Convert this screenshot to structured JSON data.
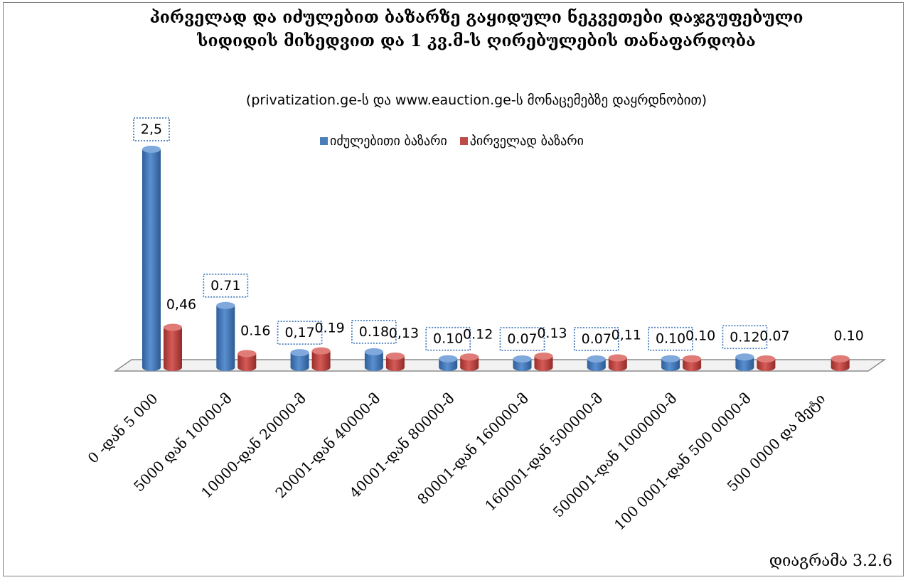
{
  "chart_data": {
    "type": "bar",
    "title": "პირველად და იძულებით ბაზარზე გაყიდული ნეკვეთები დაჯგუფებული სიდიდის მიხედვით და 1 კვ.მ-ს ღირებულების თანაფარდობა",
    "subtitle": "(privatization.ge-ს და www.eauction.ge-ს მონაცემებზე დაყრდნობით)",
    "categories": [
      "0 -დან 5 000",
      "5000 დან 10000-მ",
      "10000-დან 20000-მ",
      "20001-დან 40000-მ",
      "40001-დან 80000-მ",
      "80001-დან  160000-მ",
      "160001-დან  500000-მ",
      "500001-დან  1000000-მ",
      "100 0001-დან 500 0000-მ",
      "500 0000 და მეტი"
    ],
    "series": [
      {
        "name": "იძულებითი ბაზარი",
        "color": "#4a7ebb",
        "values": [
          2.5,
          0.71,
          0.17,
          0.18,
          0.1,
          0.07,
          0.07,
          0.1,
          0.12,
          null
        ],
        "labels": [
          "2,5",
          "0.71",
          "0,17",
          "0.18",
          "0.10",
          "0.07",
          "0.07",
          "0.10",
          "0.12",
          ""
        ]
      },
      {
        "name": "პირველად ბაზარი",
        "color": "#be4b48",
        "values": [
          0.46,
          0.16,
          0.19,
          0.13,
          0.12,
          0.13,
          0.11,
          0.1,
          0.07,
          0.1
        ],
        "labels": [
          "0,46",
          "0.16",
          "0.19",
          "0,13",
          "0.12",
          "0.13",
          "0,11",
          "0.10",
          "0.07",
          "0.10"
        ]
      }
    ],
    "ylim": [
      0,
      2.5
    ],
    "grid": false,
    "legend": "top",
    "caption": "დიაგრამა 3.2.6"
  }
}
